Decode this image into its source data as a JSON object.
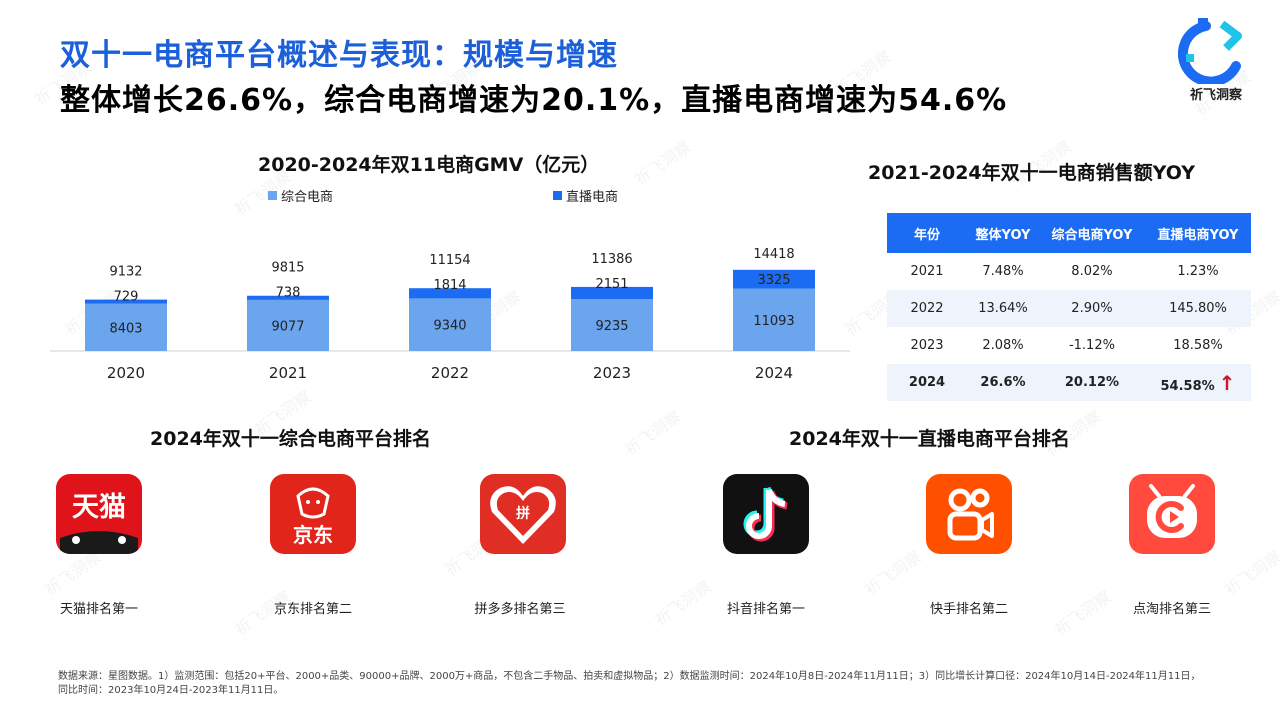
{
  "header": {
    "title": "双十一电商平台概述与表现：规模与增速",
    "subtitle": "整体增长26.6%，综合电商增速为20.1%，直播电商增速为54.6%"
  },
  "brand": {
    "name": "祈飞洞察",
    "color": "#1b6cf2"
  },
  "watermark": "祈飞洞察",
  "chart_data": {
    "type": "bar",
    "stacked": true,
    "title": "2020-2024年双11电商GMV（亿元）",
    "categories": [
      "2020",
      "2021",
      "2022",
      "2023",
      "2024"
    ],
    "series": [
      {
        "name": "综合电商",
        "color": "#6aa5ee",
        "values": [
          8403,
          9077,
          9340,
          9235,
          11093
        ]
      },
      {
        "name": "直播电商",
        "color": "#1b6cf2",
        "values": [
          729,
          738,
          1814,
          2151,
          3325
        ]
      }
    ],
    "totals": [
      9132,
      9815,
      11154,
      11386,
      14418
    ],
    "ylim": [
      0,
      16000
    ],
    "grid": false,
    "legend_position": "top"
  },
  "yoy_table": {
    "title": "2021-2024年双十一电商销售额YOY",
    "headers": [
      "年份",
      "整体YOY",
      "综合电商YOY",
      "直播电商YOY"
    ],
    "rows": [
      [
        "2021",
        "7.48%",
        "8.02%",
        "1.23%"
      ],
      [
        "2022",
        "13.64%",
        "2.90%",
        "145.80%"
      ],
      [
        "2023",
        "2.08%",
        "-1.12%",
        "18.58%"
      ],
      [
        "2024",
        "26.6%",
        "20.12%",
        "54.58%"
      ]
    ],
    "up_arrow": "↑"
  },
  "rankings": {
    "general_title": "2024年双十一综合电商平台排名",
    "live_title": "2024年双十一直播电商平台排名",
    "general": [
      {
        "logo_text": "天猫",
        "label": "天猫排名第一"
      },
      {
        "logo_text": "京东",
        "label": "京东排名第二"
      },
      {
        "logo_text": "拼",
        "label": "拼多多排名第三"
      }
    ],
    "live": [
      {
        "label": "抖音排名第一"
      },
      {
        "label": "快手排名第二"
      },
      {
        "label": "点淘排名第三"
      }
    ]
  },
  "source": "数据来源：星图数据。1）监测范围：包括20+平台、2000+品类、90000+品牌、2000万+商品，不包含二手物品、拍卖和虚拟物品；2）数据监测时间：2024年10月8日-2024年11月11日；3）同比增长计算口径：2024年10月14日-2024年11月11日，同比时间：2023年10月24日-2023年11月11日。"
}
